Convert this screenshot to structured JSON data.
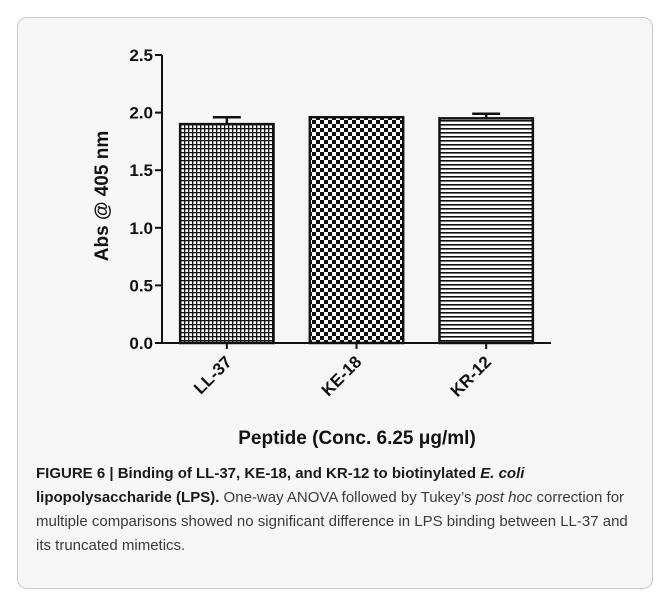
{
  "chart_data": {
    "type": "bar",
    "categories": [
      "LL-37",
      "KE-18",
      "KR-12"
    ],
    "values": [
      1.9,
      1.96,
      1.95
    ],
    "errors": [
      0.06,
      0.0,
      0.04
    ],
    "title": "",
    "xlabel": "Peptide (Conc. 6.25 μg/ml)",
    "ylabel": "Abs @ 405 nm",
    "ylim": [
      0,
      2.5
    ],
    "yticks": [
      "0.0",
      "0.5",
      "1.0",
      "1.5",
      "2.0",
      "2.5"
    ],
    "grid": false,
    "fill_patterns": [
      "fine-grid",
      "checkerboard",
      "horizontal-lines"
    ]
  },
  "caption": {
    "label": "FIGURE 6 | Binding of LL-37, KE-18, and KR-12 to biotinylated ",
    "label_italic": "E. coli",
    "label_end": " lipopolysaccharide (LPS).",
    "text_1": " One-way ANOVA followed by Tukey’s ",
    "text_italic": "post hoc",
    "text_2": " correction for multiple comparisons showed no significant difference in LPS binding between LL-37 and its truncated mimetics."
  }
}
